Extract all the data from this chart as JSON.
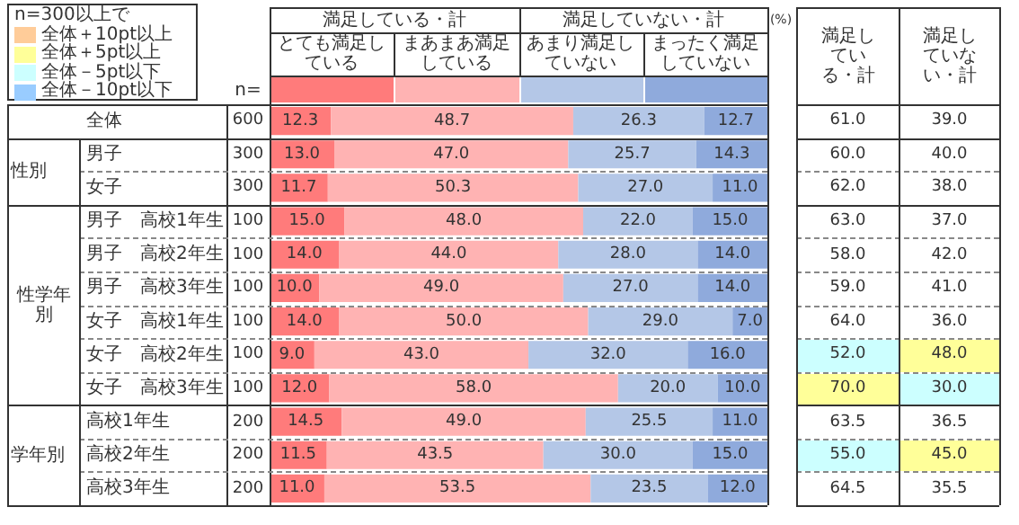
{
  "chart_data": [
    {
      "type": "bar",
      "orientation": "horizontal",
      "stacked": true,
      "legend": "top",
      "categories": [
        "全体",
        "男子",
        "女子",
        "男子　高校1年生",
        "男子　高校2年生",
        "男子　高校3年生",
        "女子　高校1年生",
        "女子　高校2年生",
        "女子　高校3年生",
        "高校1年生",
        "高校2年生",
        "高校3年生"
      ],
      "series": [
        {
          "name": "とても満足している",
          "color": "#ff7b7b",
          "values": [
            12.3,
            13.0,
            11.7,
            15.0,
            14.0,
            10.0,
            14.0,
            9.0,
            12.0,
            14.5,
            11.5,
            11.0
          ],
          "value_labels": [
            "12.3",
            "13.0",
            "11.7",
            "15.0",
            "14.0",
            "10.0",
            "14.0",
            "9.0",
            "12.0",
            "14.5",
            "11.5",
            "11.0"
          ]
        },
        {
          "name": "まあまあ満足している",
          "color": "#ffb3b3",
          "values": [
            48.7,
            47.0,
            50.3,
            48.0,
            44.0,
            49.0,
            50.0,
            43.0,
            58.0,
            49.0,
            43.5,
            53.5
          ],
          "value_labels": [
            "48.7",
            "47.0",
            "50.3",
            "48.0",
            "44.0",
            "49.0",
            "50.0",
            "43.0",
            "58.0",
            "49.0",
            "43.5",
            "53.5"
          ]
        },
        {
          "name": "あまり満足していない",
          "color": "#b4c7e7",
          "values": [
            26.3,
            25.7,
            27.0,
            22.0,
            28.0,
            27.0,
            29.0,
            32.0,
            20.0,
            25.5,
            30.0,
            23.5
          ],
          "value_labels": [
            "26.3",
            "25.7",
            "27.0",
            "22.0",
            "28.0",
            "27.0",
            "29.0",
            "32.0",
            "20.0",
            "25.5",
            "30.0",
            "23.5"
          ]
        },
        {
          "name": "まったく満足していない",
          "color": "#8faadc",
          "values": [
            12.7,
            14.3,
            11.0,
            15.0,
            14.0,
            14.0,
            7.0,
            16.0,
            10.0,
            11.0,
            15.0,
            12.0
          ],
          "value_labels": [
            "12.7",
            "14.3",
            "11.0",
            "15.0",
            "14.0",
            "14.0",
            "7.0",
            "16.0",
            "10.0",
            "11.0",
            "15.0",
            "12.0"
          ]
        }
      ],
      "annotations": [
        "満足している・計",
        "満足していない・計",
        "(%)",
        "性別",
        "性学年別",
        "学年別"
      ]
    },
    {
      "type": "other",
      "annotations": [
        "n=",
        "600",
        "300",
        "300",
        "100",
        "100",
        "100",
        "100",
        "100",
        "100",
        "200",
        "200",
        "200"
      ]
    },
    {
      "type": "other",
      "annotations": [
        "満足している・計",
        "満足していない・計",
        "61.0",
        "39.0",
        "60.0",
        "40.0",
        "62.0",
        "38.0",
        "63.0",
        "37.0",
        "58.0",
        "42.0",
        "59.0",
        "41.0",
        "64.0",
        "36.0",
        "52.0",
        "48.0",
        "70.0",
        "30.0",
        "63.5",
        "36.5",
        "55.0",
        "45.0",
        "64.5",
        "35.5"
      ],
      "colors": [
        null,
        null,
        null,
        null,
        null,
        null,
        null,
        null,
        null,
        null,
        null,
        null,
        null,
        null,
        null,
        null,
        "#ccffff",
        "#ffff99",
        "#ffff99",
        "#ccffff",
        null,
        null,
        "#ccffff",
        "#ffff99",
        null,
        null
      ]
    },
    {
      "type": "other",
      "title": "n=300以上で",
      "categories": [
        "全体＋10pt以上",
        "全体＋5pt以上",
        "全体－5pt以下",
        "全体－10pt以下"
      ],
      "colors": [
        "#ffcc99",
        "#ffff99",
        "#ccffff",
        "#99ccff"
      ]
    }
  ]
}
